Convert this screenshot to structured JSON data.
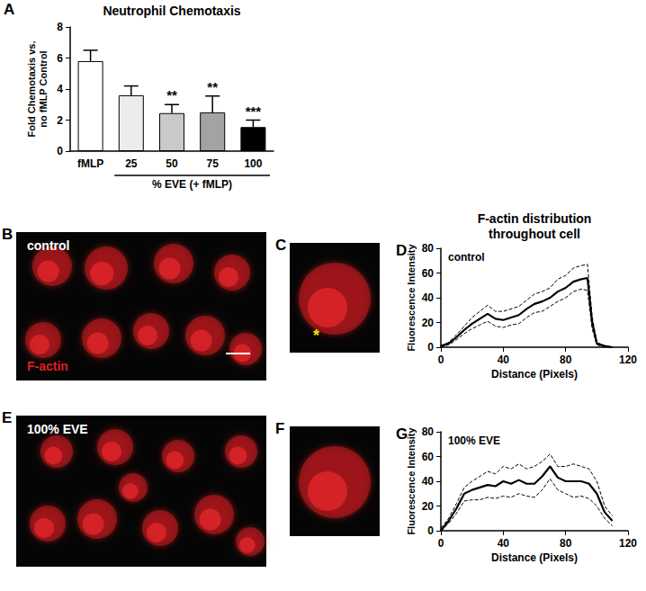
{
  "chart_data": [
    {
      "type": "bar",
      "panel_label": "A",
      "title": "Neutrophil Chemotaxis",
      "categories": [
        "fMLP",
        "25",
        "50",
        "75",
        "100"
      ],
      "values": [
        5.8,
        3.6,
        2.45,
        2.5,
        1.55
      ],
      "errors": [
        0.7,
        0.6,
        0.55,
        1.05,
        0.45
      ],
      "colors": [
        "#ffffff",
        "#ececec",
        "#c9c9c9",
        "#a3a3a3",
        "#000000"
      ],
      "significance": [
        null,
        null,
        "**",
        "**",
        "***"
      ],
      "group_label": "% EVE (+ fMLP)",
      "ylabel": "Fold Chemotaxis vs.\nno fMLP Control",
      "ylim": [
        0,
        8
      ],
      "yticks": [
        0,
        2,
        4,
        6,
        8
      ],
      "grid": false
    },
    {
      "type": "image",
      "panel_label": "B",
      "annotations": [
        {
          "text": "control",
          "color": "#ffffff"
        },
        {
          "text": "F-actin",
          "color": "#e02020"
        }
      ]
    },
    {
      "type": "image",
      "panel_label": "C",
      "annotations": [
        {
          "text": "*",
          "color": "#f5e600"
        }
      ]
    },
    {
      "type": "line",
      "panel_label": "D",
      "title": "F-actin distribution\nthroughout cell",
      "annotations": [
        {
          "text": "control",
          "color": "#000000"
        }
      ],
      "xlabel": "Distance (Pixels)",
      "ylabel": "Fluorescence Intensity",
      "x": [
        0,
        5,
        10,
        15,
        20,
        25,
        30,
        35,
        40,
        45,
        50,
        55,
        60,
        65,
        70,
        75,
        80,
        85,
        90,
        94,
        97,
        100,
        105,
        110
      ],
      "series": [
        {
          "values": [
            1,
            3,
            8,
            14,
            19,
            23,
            27,
            23,
            22,
            24,
            26,
            31,
            35,
            37,
            40,
            45,
            48,
            53,
            55,
            56,
            20,
            3,
            1,
            0
          ],
          "color": "#000000",
          "line_style": "solid"
        },
        {
          "values": [
            1,
            4,
            10,
            17,
            24,
            29,
            34,
            29,
            29,
            31,
            33,
            38,
            43,
            45,
            48,
            55,
            58,
            64,
            66,
            67,
            25,
            4,
            1,
            0
          ],
          "color": "#000000",
          "line_style": "dashed"
        },
        {
          "values": [
            0,
            2,
            6,
            11,
            15,
            18,
            21,
            17,
            16,
            18,
            19,
            24,
            28,
            29,
            33,
            37,
            40,
            45,
            47,
            46,
            15,
            2,
            0,
            0
          ],
          "color": "#000000",
          "line_style": "dashed"
        }
      ],
      "xlim": [
        0,
        120
      ],
      "xticks": [
        0,
        40,
        80,
        120
      ],
      "ylim": [
        0,
        80
      ],
      "yticks": [
        0,
        20,
        40,
        60,
        80
      ],
      "grid": false
    },
    {
      "type": "image",
      "panel_label": "E",
      "annotations": [
        {
          "text": "100% EVE",
          "color": "#ffffff"
        }
      ]
    },
    {
      "type": "image",
      "panel_label": "F",
      "annotations": []
    },
    {
      "type": "line",
      "panel_label": "G",
      "annotations": [
        {
          "text": "100% EVE",
          "color": "#000000"
        }
      ],
      "xlabel": "Distance (Pixels)",
      "ylabel": "Fluorescence Intensity",
      "x": [
        0,
        5,
        10,
        15,
        20,
        25,
        30,
        35,
        40,
        45,
        50,
        55,
        60,
        65,
        70,
        75,
        80,
        85,
        90,
        95,
        100,
        105,
        110
      ],
      "series": [
        {
          "values": [
            0,
            8,
            18,
            30,
            33,
            35,
            37,
            36,
            40,
            38,
            41,
            38,
            38,
            44,
            52,
            43,
            40,
            40,
            40,
            38,
            30,
            15,
            8
          ],
          "color": "#000000",
          "line_style": "solid"
        },
        {
          "values": [
            2,
            10,
            22,
            35,
            40,
            44,
            48,
            46,
            52,
            50,
            54,
            50,
            52,
            56,
            62,
            52,
            52,
            54,
            52,
            50,
            40,
            20,
            12
          ],
          "color": "#000000",
          "line_style": "dashed"
        },
        {
          "values": [
            0,
            6,
            14,
            24,
            25,
            25,
            27,
            26,
            28,
            27,
            30,
            28,
            27,
            33,
            42,
            33,
            30,
            27,
            28,
            26,
            20,
            10,
            4
          ],
          "color": "#000000",
          "line_style": "dashed"
        }
      ],
      "xlim": [
        0,
        120
      ],
      "xticks": [
        0,
        40,
        80,
        120
      ],
      "ylim": [
        0,
        80
      ],
      "yticks": [
        0,
        20,
        40,
        60,
        80
      ],
      "grid": false
    }
  ]
}
